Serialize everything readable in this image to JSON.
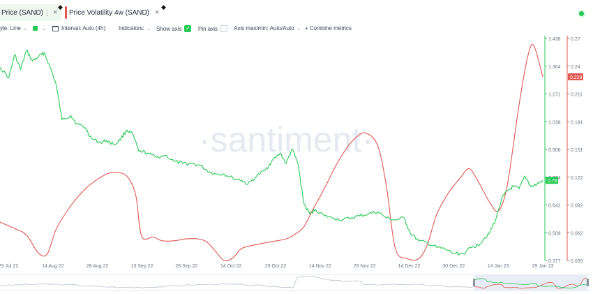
{
  "tabs": [
    {
      "label": "Price (SAND)",
      "color": "#26c953"
    },
    {
      "label": "Price Volatility 4w (SAND)",
      "color": "#e0574f"
    }
  ],
  "icons": {
    "more": "⋮",
    "close": "×",
    "diamond": "◆",
    "chevron": "⌄",
    "check": "✓"
  },
  "toolbar": {
    "style_label": "yle: Line",
    "interval_label": "Interval: Auto (4h)",
    "indicators_label": "Indicators:",
    "show_axis_label": "Show axis",
    "pin_axis_label": "Pin axis",
    "axis_max_min_label": "Axis max/min: Auto/Auto",
    "combine_label": "+ Combine metrics"
  },
  "watermark": "·santiment·",
  "colors": {
    "price": "#26c953",
    "volatility": "#e0574f",
    "navigator_bg": "#e8ecf5"
  },
  "chart_data": {
    "type": "line",
    "x_ticks": [
      "29 Jul 22",
      "14 Aug 22",
      "28 Aug 22",
      "13 Sep 22",
      "28 Sep 22",
      "14 Oct 22",
      "29 Oct 22",
      "14 Nov 22",
      "29 Nov 22",
      "14 Dec 22",
      "30 Dec 22",
      "14 Jan 23",
      "29 Jan 23"
    ],
    "x_dates": [
      "2022-07-29",
      "2023-01-29"
    ],
    "price_axis": {
      "ticks": [
        "1.438",
        "1.304",
        "1.171",
        "1.038",
        "0.906",
        "0.774",
        "0.642",
        "0.509",
        "0.377"
      ],
      "range": [
        0.377,
        1.438
      ]
    },
    "volatility_axis": {
      "ticks": [
        "0.27",
        "0.24",
        "0.211",
        "0.181",
        "0.151",
        "0.122",
        "0.092",
        "0.062",
        "0.033"
      ],
      "range": [
        0.033,
        0.27
      ]
    },
    "last_values": {
      "price": "0.76",
      "volatility": "0.229"
    },
    "series": [
      {
        "metric": "Price (SAND)",
        "color": "#26c953",
        "axis": "price",
        "points": [
          [
            "2022-07-29",
            1.3
          ],
          [
            "2022-08-01",
            1.25
          ],
          [
            "2022-08-03",
            1.36
          ],
          [
            "2022-08-05",
            1.29
          ],
          [
            "2022-08-07",
            1.38
          ],
          [
            "2022-08-09",
            1.33
          ],
          [
            "2022-08-11",
            1.35
          ],
          [
            "2022-08-13",
            1.37
          ],
          [
            "2022-08-15",
            1.3
          ],
          [
            "2022-08-17",
            1.22
          ],
          [
            "2022-08-19",
            1.05
          ],
          [
            "2022-08-22",
            1.07
          ],
          [
            "2022-08-24",
            1.03
          ],
          [
            "2022-08-27",
            1.01
          ],
          [
            "2022-08-29",
            0.96
          ],
          [
            "2022-09-01",
            0.94
          ],
          [
            "2022-09-03",
            0.95
          ],
          [
            "2022-09-06",
            0.93
          ],
          [
            "2022-09-08",
            0.96
          ],
          [
            "2022-09-10",
            1.0
          ],
          [
            "2022-09-12",
            0.98
          ],
          [
            "2022-09-14",
            0.9
          ],
          [
            "2022-09-17",
            0.89
          ],
          [
            "2022-09-20",
            0.87
          ],
          [
            "2022-09-23",
            0.88
          ],
          [
            "2022-09-26",
            0.85
          ],
          [
            "2022-09-29",
            0.84
          ],
          [
            "2022-10-02",
            0.84
          ],
          [
            "2022-10-05",
            0.83
          ],
          [
            "2022-10-08",
            0.8
          ],
          [
            "2022-10-10",
            0.79
          ],
          [
            "2022-10-13",
            0.79
          ],
          [
            "2022-10-16",
            0.77
          ],
          [
            "2022-10-19",
            0.76
          ],
          [
            "2022-10-21",
            0.74
          ],
          [
            "2022-10-24",
            0.78
          ],
          [
            "2022-10-27",
            0.81
          ],
          [
            "2022-10-29",
            0.85
          ],
          [
            "2022-11-01",
            0.89
          ],
          [
            "2022-11-03",
            0.84
          ],
          [
            "2022-11-05",
            0.91
          ],
          [
            "2022-11-07",
            0.84
          ],
          [
            "2022-11-09",
            0.65
          ],
          [
            "2022-11-11",
            0.6
          ],
          [
            "2022-11-13",
            0.62
          ],
          [
            "2022-11-16",
            0.59
          ],
          [
            "2022-11-19",
            0.58
          ],
          [
            "2022-11-22",
            0.57
          ],
          [
            "2022-11-25",
            0.58
          ],
          [
            "2022-11-28",
            0.59
          ],
          [
            "2022-12-01",
            0.6
          ],
          [
            "2022-12-04",
            0.61
          ],
          [
            "2022-12-07",
            0.58
          ],
          [
            "2022-12-10",
            0.57
          ],
          [
            "2022-12-13",
            0.58
          ],
          [
            "2022-12-15",
            0.51
          ],
          [
            "2022-12-18",
            0.47
          ],
          [
            "2022-12-21",
            0.46
          ],
          [
            "2022-12-24",
            0.44
          ],
          [
            "2022-12-27",
            0.43
          ],
          [
            "2022-12-30",
            0.41
          ],
          [
            "2023-01-02",
            0.41
          ],
          [
            "2023-01-05",
            0.44
          ],
          [
            "2023-01-07",
            0.45
          ],
          [
            "2023-01-09",
            0.48
          ],
          [
            "2023-01-11",
            0.51
          ],
          [
            "2023-01-13",
            0.57
          ],
          [
            "2023-01-15",
            0.67
          ],
          [
            "2023-01-17",
            0.71
          ],
          [
            "2023-01-19",
            0.73
          ],
          [
            "2023-01-21",
            0.72
          ],
          [
            "2023-01-23",
            0.78
          ],
          [
            "2023-01-25",
            0.73
          ],
          [
            "2023-01-27",
            0.74
          ],
          [
            "2023-01-29",
            0.76
          ]
        ]
      },
      {
        "metric": "Price Volatility 4w (SAND)",
        "color": "#e0574f",
        "axis": "volatility",
        "points": [
          [
            "2022-07-29",
            0.074
          ],
          [
            "2022-08-03",
            0.067
          ],
          [
            "2022-08-07",
            0.06
          ],
          [
            "2022-08-11",
            0.041
          ],
          [
            "2022-08-14",
            0.04
          ],
          [
            "2022-08-17",
            0.066
          ],
          [
            "2022-08-21",
            0.087
          ],
          [
            "2022-08-25",
            0.103
          ],
          [
            "2022-08-29",
            0.115
          ],
          [
            "2022-09-03",
            0.125
          ],
          [
            "2022-09-06",
            0.127
          ],
          [
            "2022-09-10",
            0.123
          ],
          [
            "2022-09-13",
            0.103
          ],
          [
            "2022-09-15",
            0.059
          ],
          [
            "2022-09-19",
            0.058
          ],
          [
            "2022-09-22",
            0.054
          ],
          [
            "2022-09-26",
            0.054
          ],
          [
            "2022-09-30",
            0.056
          ],
          [
            "2022-10-04",
            0.056
          ],
          [
            "2022-10-07",
            0.053
          ],
          [
            "2022-10-10",
            0.043
          ],
          [
            "2022-10-13",
            0.033
          ],
          [
            "2022-10-16",
            0.036
          ],
          [
            "2022-10-19",
            0.046
          ],
          [
            "2022-10-24",
            0.05
          ],
          [
            "2022-10-29",
            0.053
          ],
          [
            "2022-11-03",
            0.056
          ],
          [
            "2022-11-06",
            0.061
          ],
          [
            "2022-11-09",
            0.069
          ],
          [
            "2022-11-12",
            0.087
          ],
          [
            "2022-11-16",
            0.11
          ],
          [
            "2022-11-20",
            0.135
          ],
          [
            "2022-11-24",
            0.155
          ],
          [
            "2022-11-27",
            0.165
          ],
          [
            "2022-11-30",
            0.169
          ],
          [
            "2022-12-04",
            0.156
          ],
          [
            "2022-12-07",
            0.112
          ],
          [
            "2022-12-10",
            0.046
          ],
          [
            "2022-12-14",
            0.035
          ],
          [
            "2022-12-18",
            0.035
          ],
          [
            "2022-12-21",
            0.051
          ],
          [
            "2022-12-24",
            0.082
          ],
          [
            "2022-12-28",
            0.105
          ],
          [
            "2023-01-01",
            0.121
          ],
          [
            "2023-01-04",
            0.131
          ],
          [
            "2023-01-07",
            0.118
          ],
          [
            "2023-01-11",
            0.095
          ],
          [
            "2023-01-14",
            0.086
          ],
          [
            "2023-01-17",
            0.114
          ],
          [
            "2023-01-21",
            0.2
          ],
          [
            "2023-01-24",
            0.252
          ],
          [
            "2023-01-26",
            0.262
          ],
          [
            "2023-01-29",
            0.229
          ]
        ]
      }
    ]
  }
}
